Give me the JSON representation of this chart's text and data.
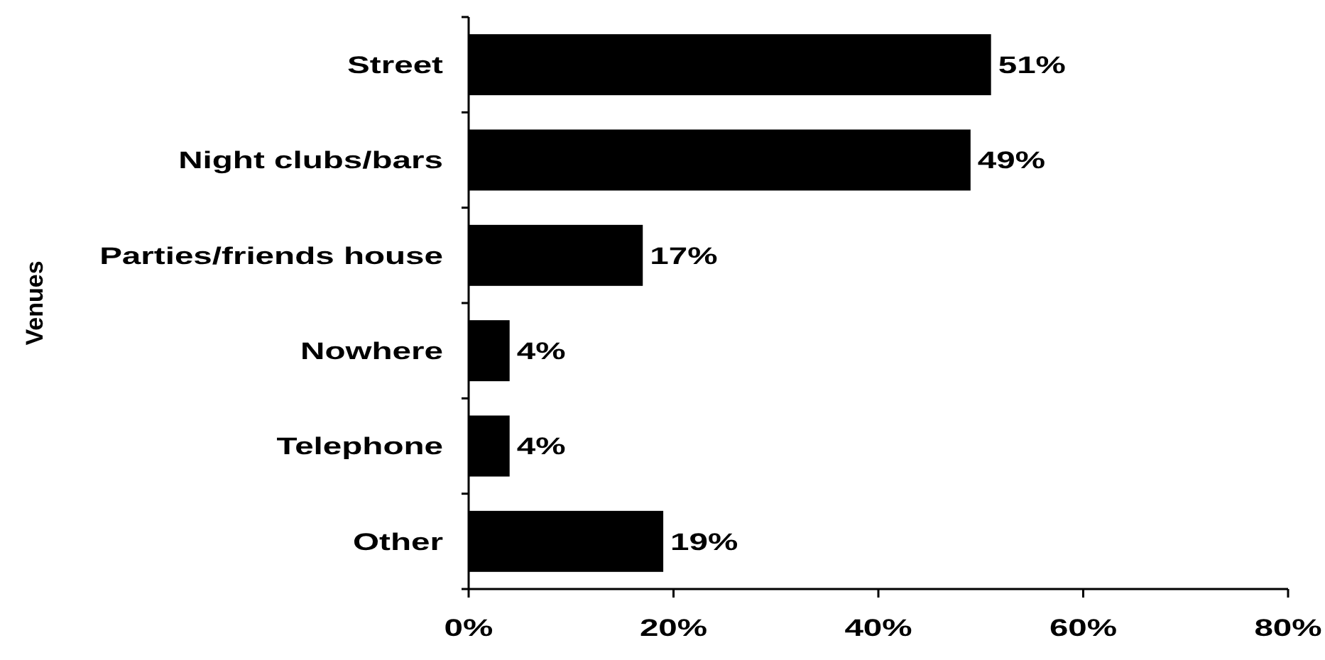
{
  "chart_data": {
    "type": "bar",
    "orientation": "horizontal",
    "ylabel": "Venues",
    "categories": [
      "Street",
      "Night clubs/bars",
      "Parties/friends house",
      "Nowhere",
      "Telephone",
      "Other"
    ],
    "values": [
      51,
      49,
      17,
      4,
      4,
      19
    ],
    "color": "#000000",
    "value_labels": [
      "51%",
      "49%",
      "17%",
      "4%",
      "4%",
      "19%"
    ],
    "xlim": [
      0,
      80
    ],
    "xticks": [
      {
        "value": 0,
        "label": "0%"
      },
      {
        "value": 20,
        "label": "20%"
      },
      {
        "value": 40,
        "label": "40%"
      },
      {
        "value": 60,
        "label": "60%"
      },
      {
        "value": 80,
        "label": "80%"
      }
    ],
    "grid": false
  }
}
